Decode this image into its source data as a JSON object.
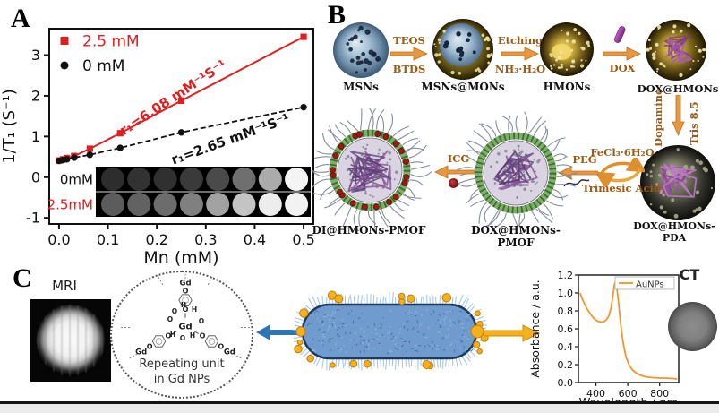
{
  "figure": {
    "panel_a": "A",
    "panel_b": "B",
    "panel_c": "C"
  },
  "colors": {
    "red_series": "#df1f1f",
    "black_series": "#111111",
    "scheme_arrow_orange": "#e9973f",
    "scheme_label_brown": "#9c5a14",
    "spectrum_orange": "#ef962e",
    "blue_arrow": "#2f74b5",
    "gold_aunp": "#f3ab18",
    "shell_green": "#5f9e4c"
  },
  "chart_data": [
    {
      "id": "mn_relaxivity",
      "type": "scatter",
      "title": "",
      "xlabel": "Mn (mM)",
      "ylabel": "1/T₁ (S⁻¹)",
      "xlim": [
        -0.02,
        0.52
      ],
      "ylim": [
        -1.15,
        3.65
      ],
      "xticks": [
        "0.0",
        "0.1",
        "0.2",
        "0.3",
        "0.4",
        "0.5"
      ],
      "xtick_values": [
        0,
        0.1,
        0.2,
        0.3,
        0.4,
        0.5
      ],
      "yticks": [
        "-1",
        "0",
        "1",
        "2",
        "3"
      ],
      "ytick_values": [
        -1,
        0,
        1,
        2,
        3
      ],
      "grid": false,
      "legend_position": "top-left",
      "series": [
        {
          "name": "2.5 mM",
          "color": "#df1f1f",
          "marker": "square",
          "line": "solid",
          "slope_label": "r₁=6.08 mM⁻¹S⁻¹",
          "x": [
            0,
            0.008,
            0.016,
            0.031,
            0.063,
            0.125,
            0.25,
            0.5
          ],
          "y": [
            0.41,
            0.44,
            0.47,
            0.52,
            0.7,
            1.08,
            1.88,
            3.45
          ]
        },
        {
          "name": "0 mM",
          "color": "#111111",
          "marker": "circle",
          "line": "dashed",
          "slope_label": "r₁=2.65 mM⁻¹S⁻¹",
          "x": [
            0,
            0.008,
            0.016,
            0.031,
            0.063,
            0.125,
            0.25,
            0.5
          ],
          "y": [
            0.4,
            0.42,
            0.44,
            0.48,
            0.55,
            0.72,
            1.1,
            1.72
          ]
        }
      ],
      "inset_rows": [
        {
          "label": "0mM",
          "label_color": "#111111",
          "shades": [
            "#2d2d2d",
            "#323232",
            "#303030",
            "#3a3a3a",
            "#4a4a4a",
            "#6f6f6f",
            "#ababab",
            "#f4f4f4"
          ]
        },
        {
          "label": "2.5mM",
          "label_color": "#df1f1f",
          "shades": [
            "#5c5c5c",
            "#626262",
            "#6c6c6c",
            "#808080",
            "#a2a2a2",
            "#c4c4c4",
            "#ededed",
            "#f2f2f2"
          ]
        }
      ]
    },
    {
      "id": "aunps_absorbance",
      "type": "line",
      "title": "",
      "xlabel": "Wavelength / nm",
      "ylabel": "Absorbance / a.u.",
      "legend": [
        "AuNPs"
      ],
      "color": "#ef962e",
      "xlim": [
        290,
        920
      ],
      "ylim": [
        0,
        1.2
      ],
      "xticks": [
        400,
        600,
        800
      ],
      "yticks": [
        "0.0",
        "0.2",
        "0.4",
        "0.6",
        "0.8",
        "1.0",
        "1.2"
      ],
      "ytick_values": [
        0,
        0.2,
        0.4,
        0.6,
        0.8,
        1.0,
        1.2
      ],
      "grid": false,
      "x": [
        300,
        315,
        330,
        345,
        360,
        375,
        390,
        405,
        420,
        435,
        450,
        465,
        480,
        495,
        505,
        515,
        522,
        530,
        540,
        550,
        560,
        575,
        590,
        610,
        630,
        650,
        675,
        700,
        730,
        760,
        800,
        840,
        880,
        910
      ],
      "y": [
        1.0,
        0.93,
        0.87,
        0.82,
        0.78,
        0.74,
        0.71,
        0.69,
        0.68,
        0.675,
        0.68,
        0.7,
        0.74,
        0.83,
        0.95,
        1.08,
        1.12,
        1.07,
        0.93,
        0.75,
        0.58,
        0.4,
        0.28,
        0.19,
        0.14,
        0.11,
        0.085,
        0.07,
        0.06,
        0.055,
        0.05,
        0.05,
        0.045,
        0.04
      ]
    }
  ],
  "scheme": {
    "particles": {
      "msns": "MSNs",
      "msns_mons": "MSNs@MONs",
      "hmons": "HMONs",
      "dox_hmons": "DOX@HMONs",
      "pda": "DOX@HMONs-PDA",
      "pmof": "DOX@HMONs-PMOF",
      "final": "DI@HMONs-PMOF"
    },
    "arrow1_top": "TEOS",
    "arrow1_bottom": "BTDS",
    "arrow2_top": "Etching",
    "arrow2_bottom": "NH₃·H₂O",
    "arrow3_bottom": "DOX",
    "varrow_left": "Dopamine",
    "varrow_right": "Tris 8.5",
    "cycle_top": "FeCl₃·6H₂O",
    "cycle_bottom": "Trimesic Acid",
    "peg": "PEG",
    "icg": "ICG"
  },
  "panel_c": {
    "mri_label": "MRI",
    "ct_label": "CT",
    "caption_line1": "Repeating unit",
    "caption_line2": "in Gd NPs",
    "atom_gd": "Gd",
    "atom_o": "O",
    "atom_h": "H"
  }
}
